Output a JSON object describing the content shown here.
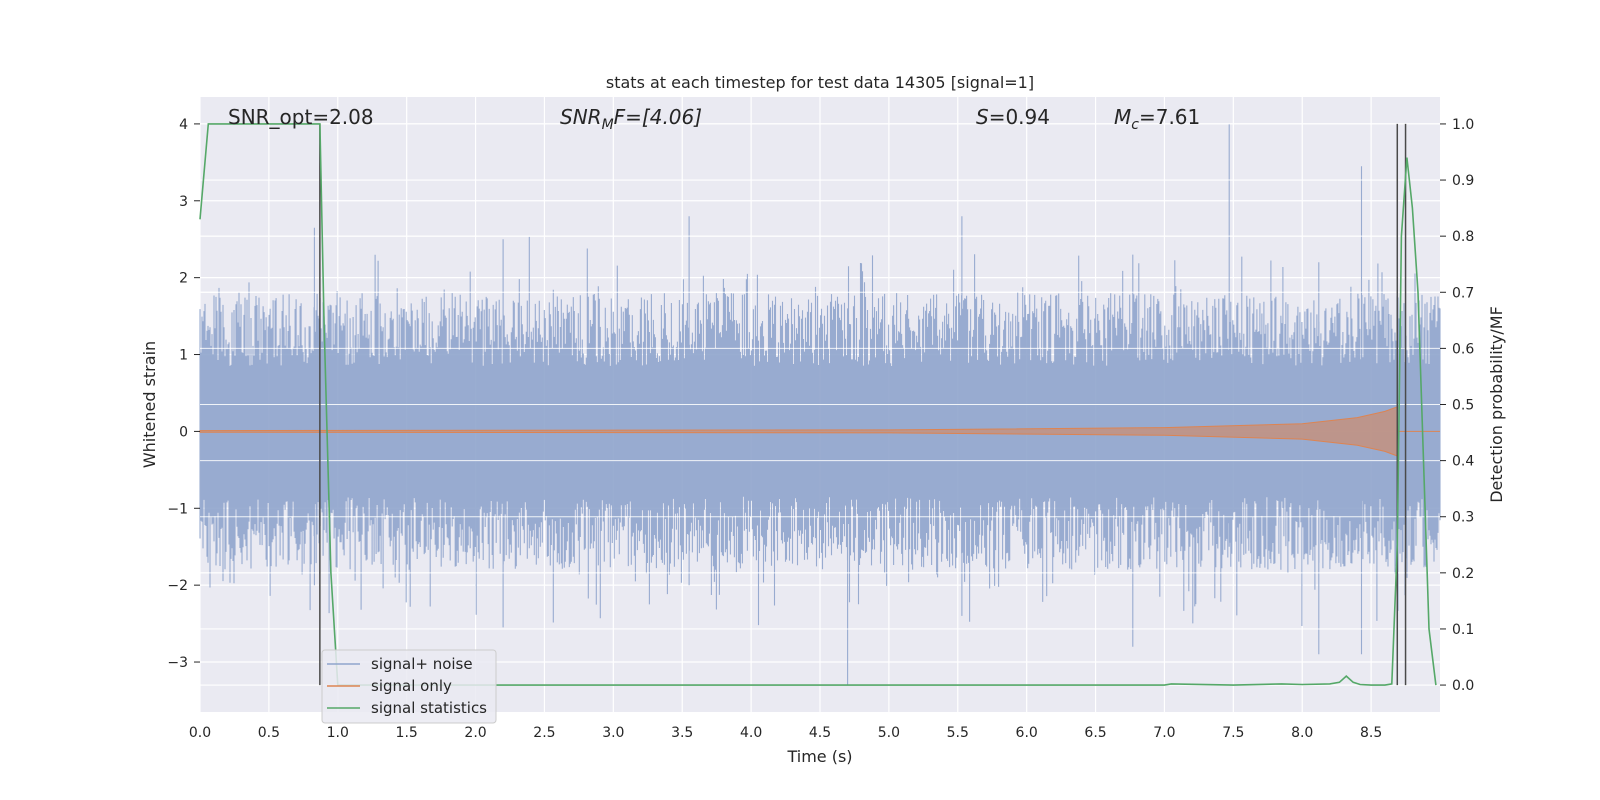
{
  "chart_data": {
    "type": "line",
    "title": "stats at each timestep for test data 14305 [signal=1]",
    "xlabel": "Time (s)",
    "ylabel_left": "Whitened strain",
    "ylabel_right": "Detection probability/MF",
    "xlim": [
      0.0,
      9.0
    ],
    "ylim_left": [
      -3.65,
      4.35
    ],
    "ylim_right": [
      -0.048,
      1.048
    ],
    "xticks": [
      "0.0",
      "0.5",
      "1.0",
      "1.5",
      "2.0",
      "2.5",
      "3.0",
      "3.5",
      "4.0",
      "4.5",
      "5.0",
      "5.5",
      "6.0",
      "6.5",
      "7.0",
      "7.5",
      "8.0",
      "8.5"
    ],
    "yticks_left": [
      "−3",
      "−2",
      "−1",
      "0",
      "1",
      "2",
      "3",
      "4"
    ],
    "yticks_right": [
      "0.0",
      "0.1",
      "0.2",
      "0.3",
      "0.4",
      "0.5",
      "0.6",
      "0.7",
      "0.8",
      "0.9",
      "1.0"
    ],
    "annotations": {
      "snr_opt": "SNR_opt=2.08",
      "snr_mf_base": "SNR",
      "snr_mf_sub": "M",
      "snr_mf_rest": "F=[4.06]",
      "s_var": "S",
      "s_rest": "=0.94",
      "mc_var": "M",
      "mc_sub": "c",
      "mc_rest": "=7.61"
    },
    "legend": {
      "position": "lower-left",
      "entries": [
        "signal+ noise",
        "signal only",
        "signal statistics"
      ]
    },
    "series": [
      {
        "name": "signal+ noise",
        "color": "#8fa4cc",
        "note": "whitened strain noise, amplitude approx +/-1.8 with spikes to 4.0 and -3.3"
      },
      {
        "name": "signal only",
        "color": "#dd8452",
        "envelope": [
          [
            0,
            0.01
          ],
          [
            5.0,
            0.02
          ],
          [
            7.0,
            0.05
          ],
          [
            8.0,
            0.1
          ],
          [
            8.4,
            0.18
          ],
          [
            8.6,
            0.26
          ],
          [
            8.69,
            0.32
          ]
        ]
      },
      {
        "name": "signal statistics",
        "color": "#55a868",
        "x": [
          0.0,
          0.06,
          0.12,
          0.2,
          0.4,
          0.6,
          0.8,
          0.87,
          0.9,
          0.95,
          1.0,
          1.5,
          2.0,
          3.0,
          4.0,
          5.0,
          6.0,
          7.0,
          7.05,
          7.5,
          7.85,
          8.0,
          8.2,
          8.27,
          8.32,
          8.37,
          8.42,
          8.5,
          8.6,
          8.65,
          8.69,
          8.72,
          8.76,
          8.8,
          8.84,
          8.88,
          8.92,
          8.97
        ],
        "values": [
          0.83,
          1.0,
          1.0,
          1.0,
          1.0,
          1.0,
          1.0,
          1.0,
          0.65,
          0.2,
          0.0,
          0.0,
          0.0,
          0.0,
          0.0,
          0.0,
          0.0,
          0.0,
          0.002,
          0.0,
          0.002,
          0.001,
          0.002,
          0.005,
          0.016,
          0.005,
          0.001,
          0.0,
          0.0,
          0.002,
          0.25,
          0.8,
          0.94,
          0.85,
          0.7,
          0.4,
          0.1,
          0.0
        ]
      }
    ],
    "vertical_lines_x": [
      0.87,
      8.69,
      8.75
    ]
  }
}
